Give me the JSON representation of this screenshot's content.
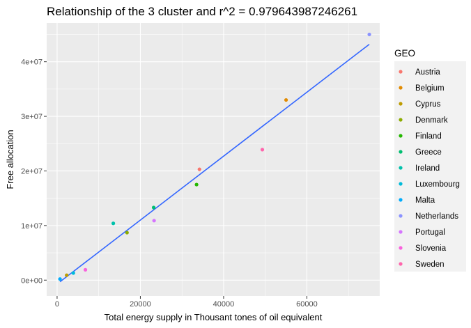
{
  "chart_data": {
    "type": "scatter",
    "title": "Relationship of the 3  cluster and r^2 =  0.979643987246261",
    "xlabel": "Total energy supply in Thousant tones of oil equivalent",
    "ylabel": "Free allocation",
    "xlim": [
      -2500,
      77500
    ],
    "ylim": [
      -2900000,
      47100000
    ],
    "x_ticks": [
      0,
      20000,
      40000,
      60000
    ],
    "x_tick_labels": [
      "0",
      "20000",
      "40000",
      "60000"
    ],
    "y_ticks": [
      0,
      10000000,
      20000000,
      30000000,
      40000000
    ],
    "y_tick_labels": [
      "0e+00",
      "1e+07",
      "2e+07",
      "3e+07",
      "4e+07"
    ],
    "grid": true,
    "legend": {
      "title": "GEO",
      "placement": "right",
      "entries": [
        {
          "name": "Austria",
          "color": "#F8766D"
        },
        {
          "name": "Belgium",
          "color": "#E18A00"
        },
        {
          "name": "Cyprus",
          "color": "#BE9C00"
        },
        {
          "name": "Denmark",
          "color": "#8CAB00"
        },
        {
          "name": "Finland",
          "color": "#24B700"
        },
        {
          "name": "Greece",
          "color": "#00BE70"
        },
        {
          "name": "Ireland",
          "color": "#00C1AB"
        },
        {
          "name": "Luxembourg",
          "color": "#00BBDA"
        },
        {
          "name": "Malta",
          "color": "#00ACFC"
        },
        {
          "name": "Netherlands",
          "color": "#8B93FF"
        },
        {
          "name": "Portugal",
          "color": "#D575FE"
        },
        {
          "name": "Slovenia",
          "color": "#F962DD"
        },
        {
          "name": "Sweden",
          "color": "#FF65AC"
        }
      ]
    },
    "points": [
      {
        "geo": "Austria",
        "x": 34200,
        "y": 20300000
      },
      {
        "geo": "Belgium",
        "x": 55000,
        "y": 33000000
      },
      {
        "geo": "Cyprus",
        "x": 2300,
        "y": 900000
      },
      {
        "geo": "Denmark",
        "x": 16800,
        "y": 8700000
      },
      {
        "geo": "Finland",
        "x": 33500,
        "y": 17500000
      },
      {
        "geo": "Greece",
        "x": 23200,
        "y": 13300000
      },
      {
        "geo": "Ireland",
        "x": 13500,
        "y": 10400000
      },
      {
        "geo": "Luxembourg",
        "x": 3900,
        "y": 1300000
      },
      {
        "geo": "Malta",
        "x": 700,
        "y": 200000
      },
      {
        "geo": "Netherlands",
        "x": 75000,
        "y": 45000000
      },
      {
        "geo": "Portugal",
        "x": 23300,
        "y": 10900000
      },
      {
        "geo": "Slovenia",
        "x": 6800,
        "y": 1900000
      },
      {
        "geo": "Sweden",
        "x": 49300,
        "y": 23900000
      }
    ],
    "fit_line": {
      "color": "#3366FF",
      "start": {
        "x": 700,
        "y": -300000
      },
      "end": {
        "x": 75000,
        "y": 43200000
      }
    },
    "colors": {
      "panel_background": "#EBEBEB",
      "grid_major": "#FFFFFF",
      "tick": "#333333"
    }
  }
}
